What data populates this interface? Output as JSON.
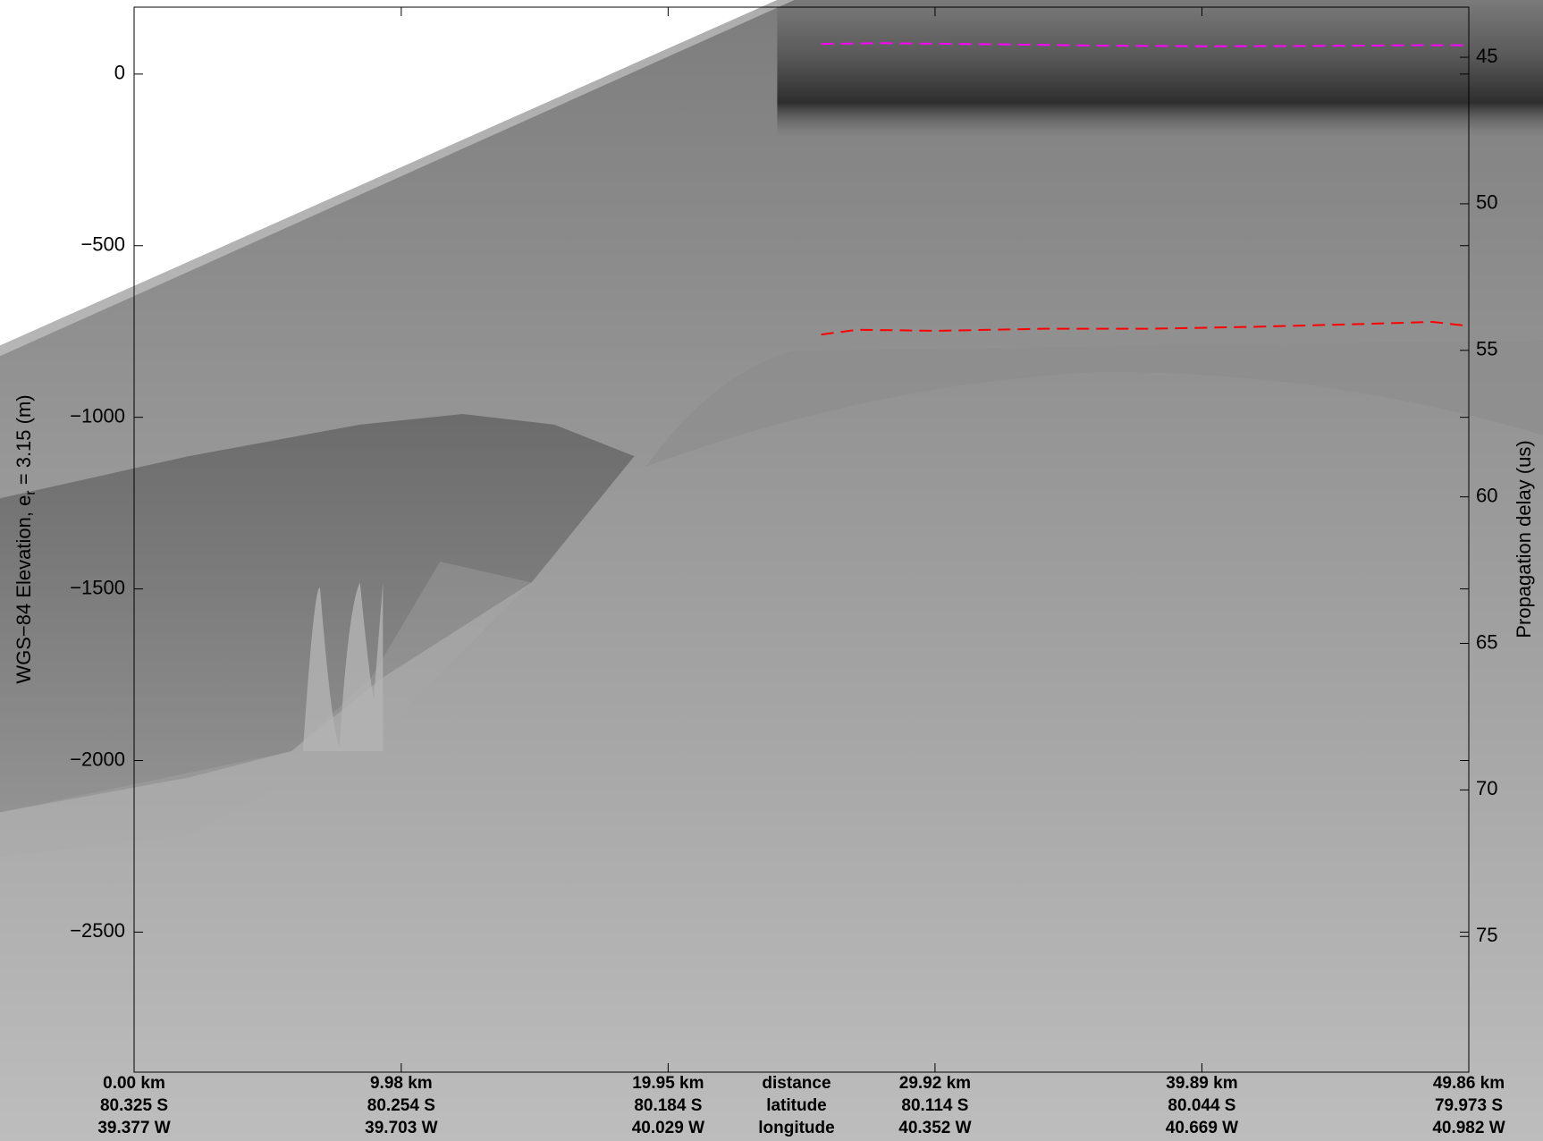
{
  "chart_data": {
    "type": "line",
    "ylabel": "WGS−84 Elevation, e",
    "ylabel_subscript": "r",
    "ylabel_suffix": " = 3.15 (m)",
    "y2label": "Propagation delay (us)",
    "xlim": [
      0,
      49.86
    ],
    "ylim": [
      -2908,
      195
    ],
    "y2lim": [
      79.63,
      43.29
    ],
    "yticks": [
      {
        "value": -2500,
        "label": "−2500"
      },
      {
        "value": -2000,
        "label": "−2000"
      },
      {
        "value": -1500,
        "label": "−1500"
      },
      {
        "value": -1000,
        "label": "−1000"
      },
      {
        "value": -500,
        "label": "−500"
      },
      0
    ],
    "y2ticks": [
      45,
      50,
      55,
      60,
      65,
      70,
      75
    ],
    "xticks": [
      {
        "value": 0,
        "label": "0.00 km"
      },
      {
        "value": 9.98,
        "label": "9.98 km"
      },
      {
        "value": 19.95,
        "label": "19.95 km"
      },
      {
        "value": 29.92,
        "label": "29.92 km"
      },
      {
        "value": 39.89,
        "label": "39.89 km"
      },
      {
        "value": 49.86,
        "label": "49.86 km"
      }
    ],
    "latitude_labels": [
      "80.325 S",
      "80.254 S",
      "80.184 S",
      "80.114 S",
      "80.044 S",
      "79.973 S"
    ],
    "longitude_labels": [
      "39.377 W",
      "39.703 W",
      "40.029 W",
      "40.352 W",
      "40.669 W",
      "40.982 W"
    ],
    "x_row_labels": [
      "distance",
      "latitude",
      "longitude"
    ],
    "series": [
      {
        "color": "#ff00ff",
        "x": [
          25.67,
          28,
          32,
          36,
          40,
          44,
          48,
          49.86
        ],
        "values": [
          88,
          90,
          87,
          83,
          81,
          82,
          84,
          84
        ]
      },
      {
        "color": "#ff0000",
        "x": [
          25.67,
          27,
          30,
          34,
          38,
          42,
          46,
          48.5,
          49.86
        ],
        "values": [
          -759,
          -745,
          -748,
          -742,
          -742,
          -736,
          -728,
          -722,
          -734
        ]
      }
    ]
  }
}
